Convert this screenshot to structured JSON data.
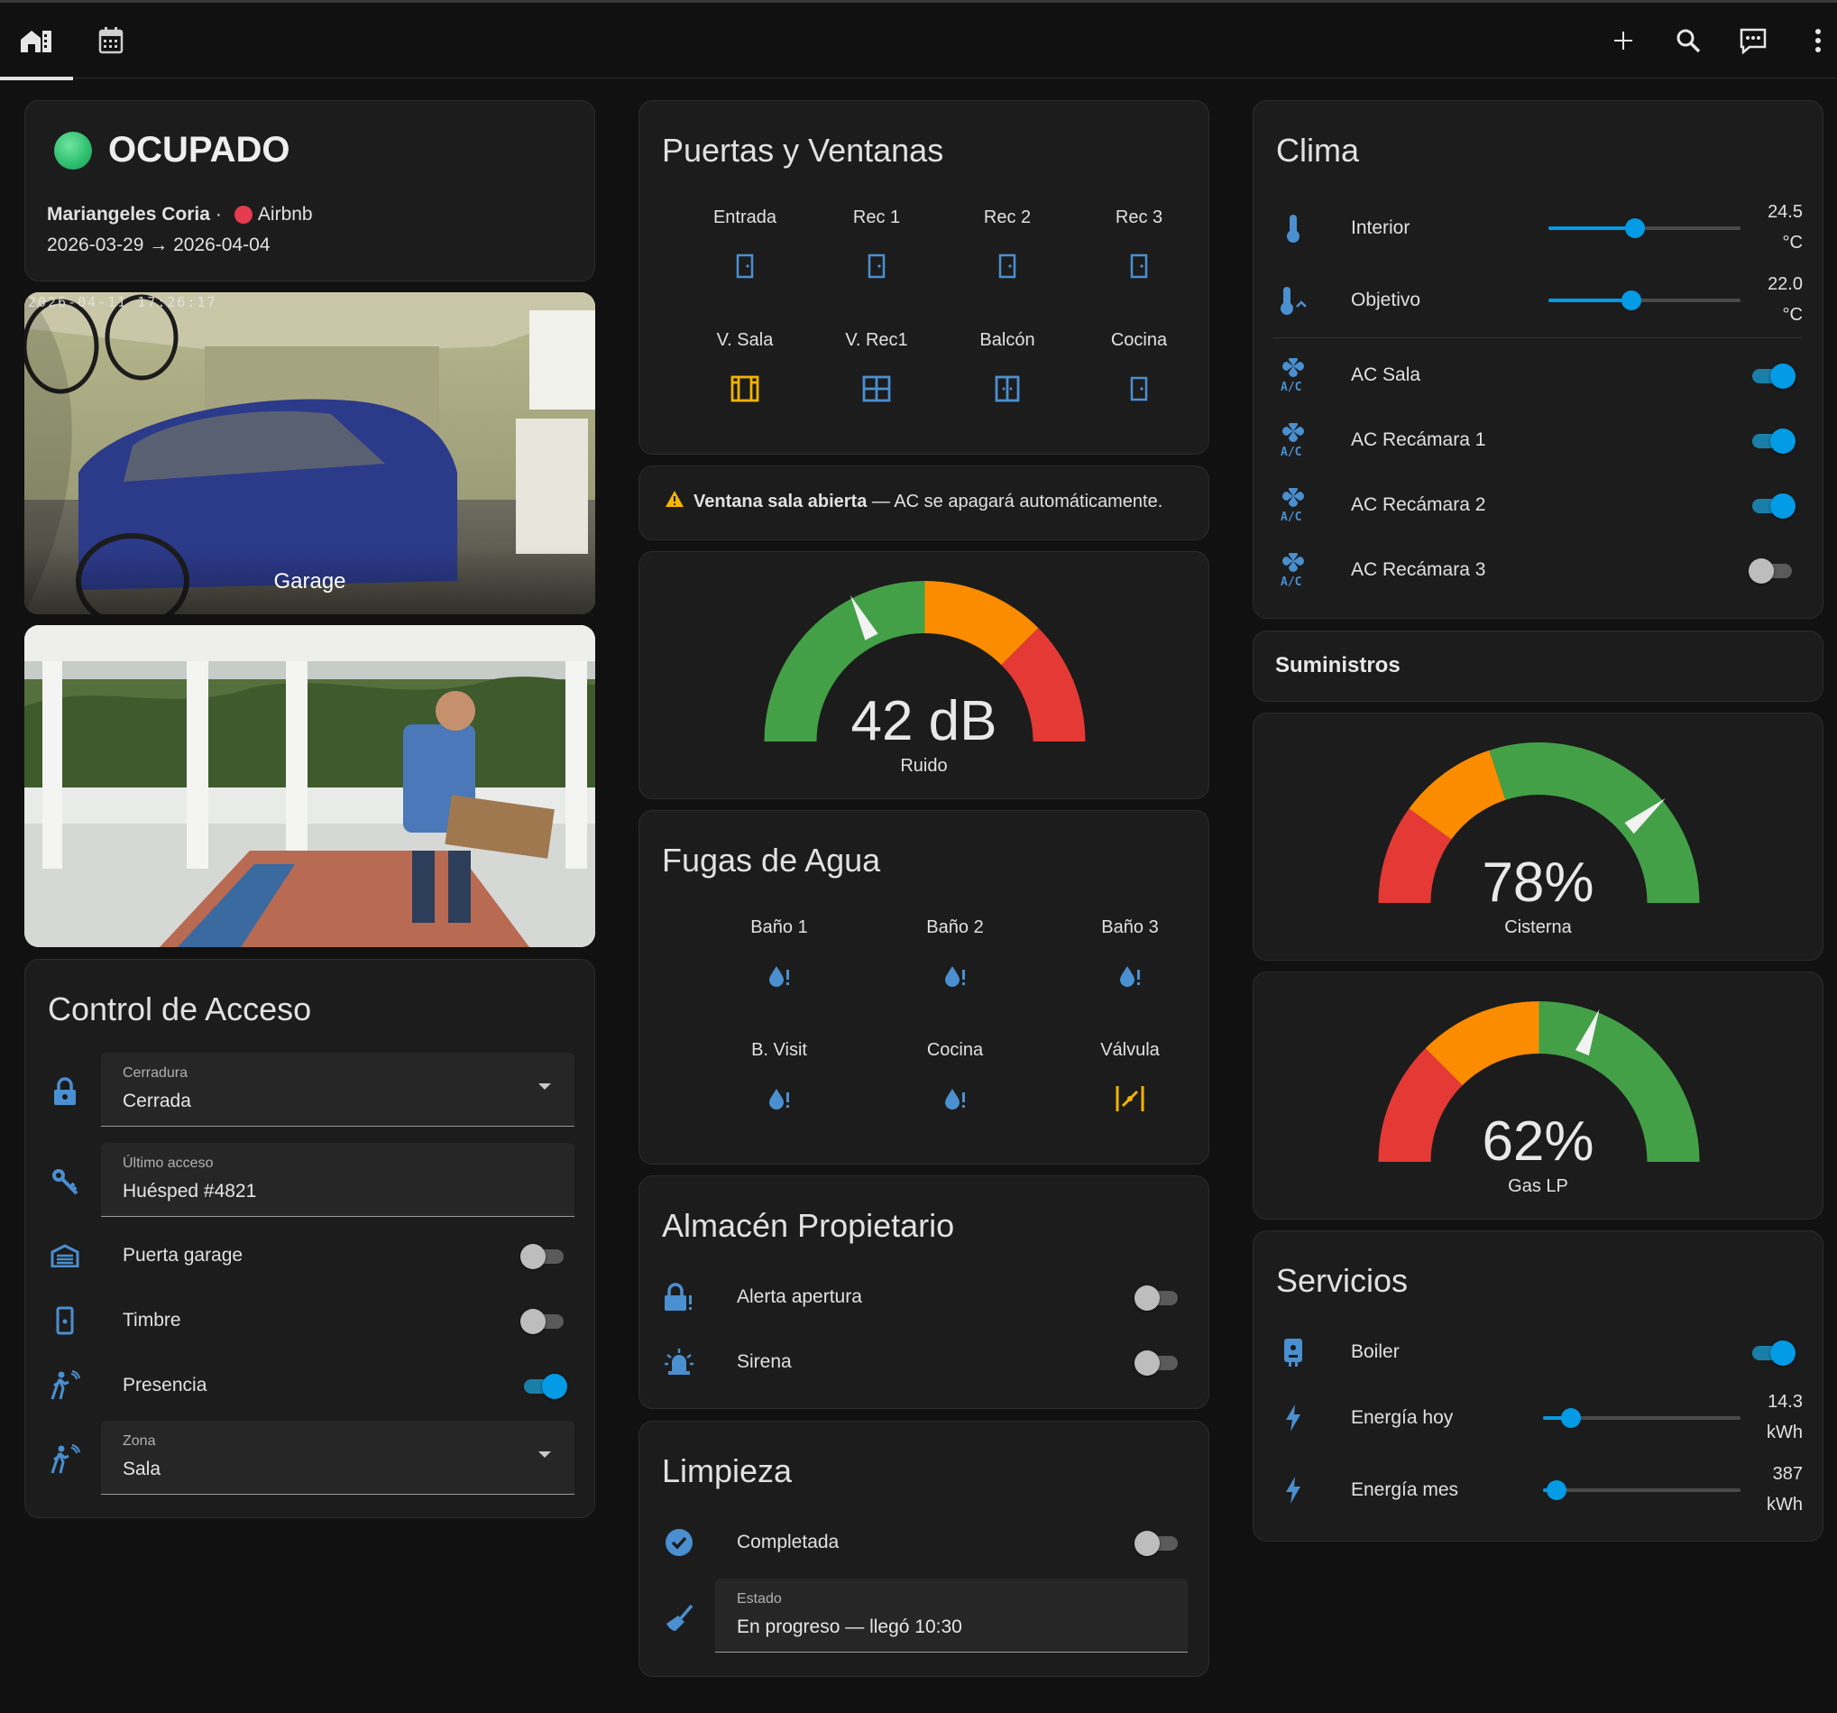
{
  "toolbar": {
    "left_icons": [
      "home-tab-icon",
      "calendar-tab-icon"
    ],
    "right_icons": [
      "plus-icon",
      "search-icon",
      "assist-icon",
      "more-vert-icon"
    ]
  },
  "status": {
    "title": "OCUPADO",
    "guest": "Mariangeles Coria",
    "separator": "·",
    "platform": "Airbnb",
    "dates": "2026-03-29 → 2026-04-04",
    "colors": {
      "dot": "#2dbd6e",
      "platform_dot": "#e63a4f"
    }
  },
  "cameras": [
    {
      "label": "Garage",
      "stamp": "2026-04-11 17:26:17"
    },
    {
      "label": ""
    }
  ],
  "acceso": {
    "title": "Control de Acceso",
    "lock": {
      "label": "Cerradura",
      "value": "Cerrada"
    },
    "last_access": {
      "label": "Último acceso",
      "value": "Huésped #4821"
    },
    "toggles": [
      {
        "label": "Puerta garage",
        "on": false
      },
      {
        "label": "Timbre",
        "on": false
      },
      {
        "label": "Presencia",
        "on": true
      }
    ],
    "zone": {
      "label": "Zona",
      "value": "Sala"
    }
  },
  "puertas": {
    "title": "Puertas y Ventanas",
    "items": [
      "Entrada",
      "Rec 1",
      "Rec 2",
      "Rec 3",
      "V. Sala",
      "V. Rec1",
      "Balcón",
      "Cocina"
    ]
  },
  "alert": {
    "bold": "Ventana sala abierta",
    "rest": " — AC se apagará automáticamente."
  },
  "ruido": {
    "value": 42,
    "unit": "dB",
    "display": "42 dB",
    "label": "Ruido",
    "min": 0,
    "max": 120
  },
  "fugas": {
    "title": "Fugas de Agua",
    "items": [
      "Baño 1",
      "Baño 2",
      "Baño 3",
      "B. Visit",
      "Cocina",
      "Válvula"
    ]
  },
  "almacen": {
    "title": "Almacén Propietario",
    "toggles": [
      {
        "label": "Alerta apertura",
        "on": false
      },
      {
        "label": "Sirena",
        "on": false
      }
    ]
  },
  "limpieza": {
    "title": "Limpieza",
    "toggle": {
      "label": "Completada",
      "on": false
    },
    "estado": {
      "label": "Estado",
      "value": "En progreso — llegó 10:30"
    }
  },
  "clima": {
    "title": "Clima",
    "interior": {
      "label": "Interior",
      "value": "24.5",
      "unit": "°C",
      "fraction": 0.45
    },
    "objetivo": {
      "label": "Objetivo",
      "value": "22.0",
      "unit": "°C",
      "fraction": 0.43
    },
    "acs": [
      {
        "label": "AC Sala",
        "on": true
      },
      {
        "label": "AC Recámara 1",
        "on": true
      },
      {
        "label": "AC Recámara 2",
        "on": true
      },
      {
        "label": "AC Recámara 3",
        "on": false
      }
    ]
  },
  "suministros": {
    "title": "Suministros"
  },
  "cisterna": {
    "value": 78,
    "display": "78%",
    "label": "Cisterna"
  },
  "gas": {
    "value": 62,
    "display": "62%",
    "label": "Gas LP"
  },
  "servicios": {
    "title": "Servicios",
    "boiler": {
      "label": "Boiler",
      "on": true
    },
    "energia_hoy": {
      "label": "Energía hoy",
      "value": "14.3",
      "unit": "kWh",
      "fraction": 0.14
    },
    "energia_mes": {
      "label": "Energía mes",
      "value": "387",
      "unit": "kWh",
      "fraction": 0.07
    }
  },
  "colors": {
    "accent": "#039be5",
    "icon_blue": "#4a8fd0",
    "amber": "#f4b400",
    "green": "#43a047",
    "orange": "#fb8c00",
    "red": "#e53935"
  }
}
